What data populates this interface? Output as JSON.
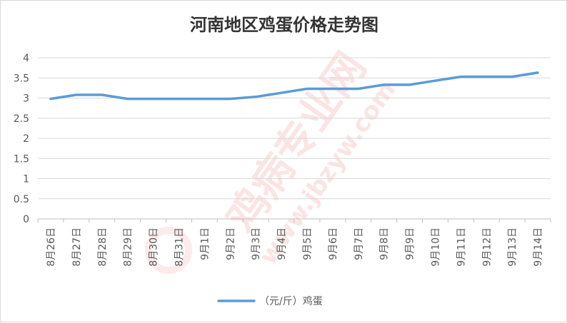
{
  "chart_data": {
    "type": "line",
    "title": "河南地区鸡蛋价格走势图",
    "categories": [
      "8月26日",
      "8月27日",
      "8月28日",
      "8月29日",
      "8月30日",
      "8月31日",
      "9月1日",
      "9月2日",
      "9月3日",
      "9月4日",
      "9月5日",
      "9月6日",
      "9月7日",
      "9月8日",
      "9月9日",
      "9月10日",
      "9月11日",
      "9月12日",
      "9月13日",
      "9月14日"
    ],
    "series": [
      {
        "name": "（元/斤）鸡蛋",
        "values": [
          2.98,
          3.08,
          3.08,
          2.98,
          2.98,
          2.98,
          2.98,
          2.98,
          3.03,
          3.13,
          3.23,
          3.23,
          3.23,
          3.33,
          3.33,
          3.43,
          3.53,
          3.53,
          3.53,
          3.63
        ]
      }
    ],
    "ylim": [
      0,
      4
    ],
    "yticks": [
      "0",
      "0.5",
      "1",
      "1.5",
      "2",
      "2.5",
      "3",
      "3.5",
      "4"
    ],
    "grid": true,
    "legend": "bottom",
    "line_color": "#5b9bd5",
    "xlabel": "",
    "ylabel": ""
  },
  "watermark": {
    "text": "鸡病专业网",
    "url": "www.jbzyw.com",
    "color": "#e8352e"
  }
}
